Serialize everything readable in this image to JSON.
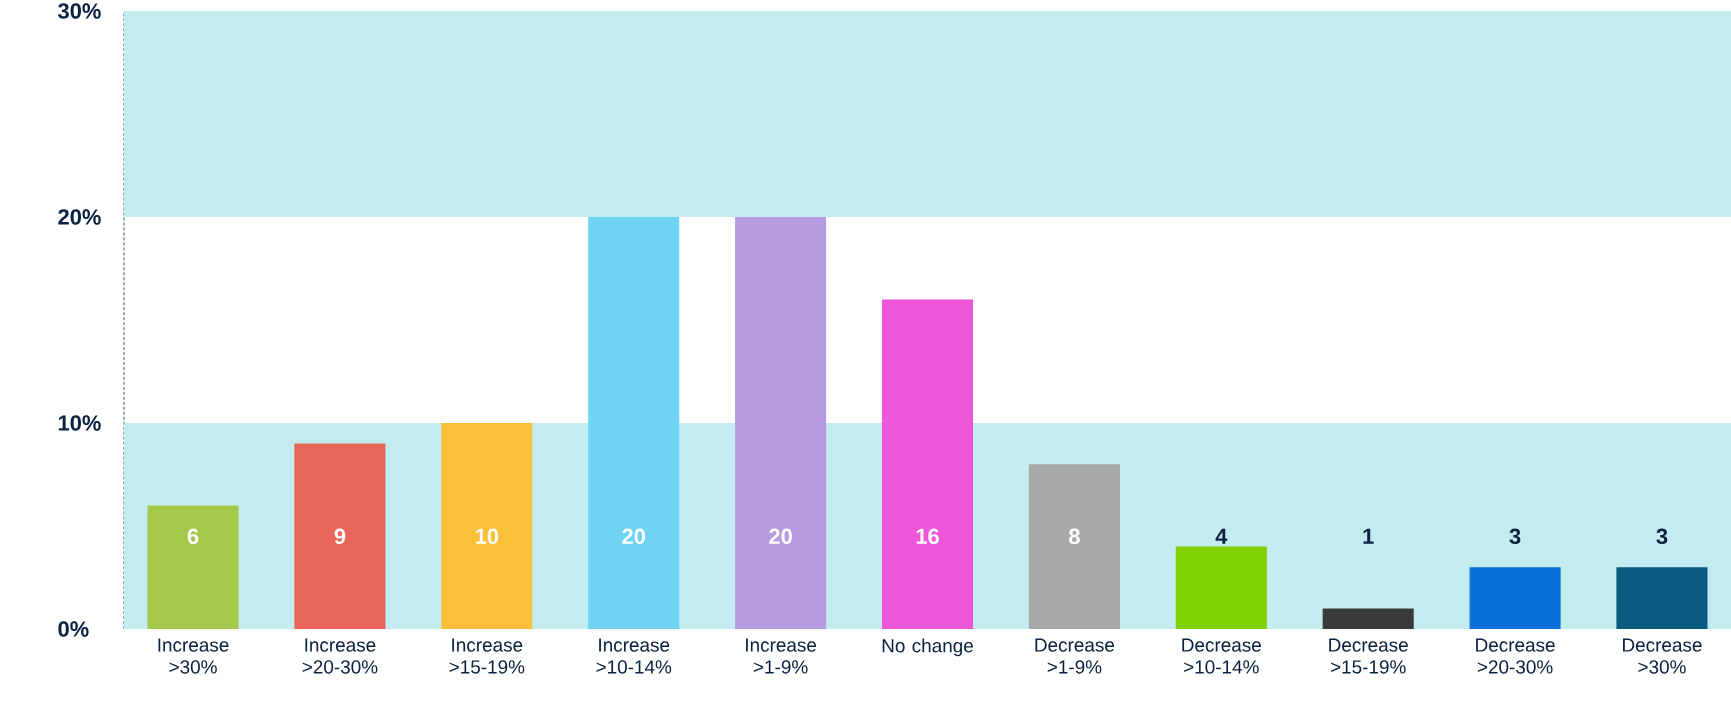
{
  "chart_data": {
    "type": "bar",
    "categories": [
      "Increase >30%",
      "Increase >20-30%",
      "Increase >15-19%",
      "Increase >10-14%",
      "Increase >1-9%",
      "No change",
      "Decrease >1-9%",
      "Decrease >10-14%",
      "Decrease >15-19%",
      "Decrease >20-30%",
      "Decrease >30%"
    ],
    "values": [
      6,
      9,
      10,
      20,
      20,
      16,
      8,
      4,
      1,
      3,
      3
    ],
    "colors": [
      "#a6c84a",
      "#e8655c",
      "#fbbf3a",
      "#6fd3f2",
      "#b79be0",
      "#ee56d8",
      "#a8aaa8",
      "#7fd100",
      "#3a3a3a",
      "#0a6fd8",
      "#0a5a80"
    ],
    "ylim": [
      0,
      30
    ],
    "yticks": [
      {
        "value": 0,
        "label": "0%"
      },
      {
        "value": 10,
        "label": "10%"
      },
      {
        "value": 20,
        "label": "20%"
      },
      {
        "value": 30,
        "label": "30%"
      }
    ],
    "bands": [
      {
        "axis": "y",
        "from": 0,
        "to": 10,
        "color": "#c2ecf0"
      },
      {
        "axis": "y",
        "from": 20,
        "to": 30,
        "color": "#c2ecf0"
      }
    ],
    "data_labels": true,
    "grid": false
  }
}
